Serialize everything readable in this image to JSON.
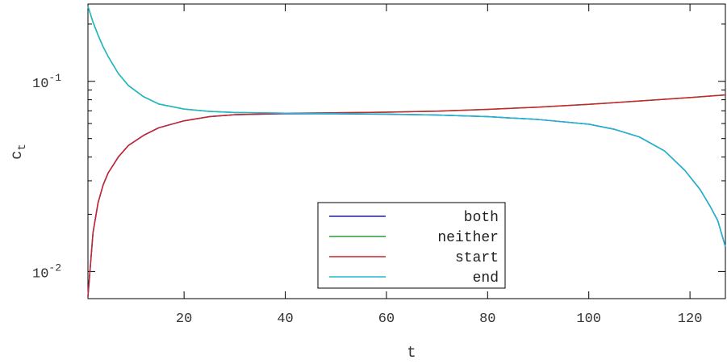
{
  "chart_data": {
    "type": "line",
    "xlabel": "t",
    "ylabel_base": "c",
    "ylabel_sub": "t",
    "xlim": [
      1,
      127
    ],
    "ylim": [
      0.0072,
      0.255
    ],
    "yscale": "log",
    "x_ticks": [
      20,
      40,
      60,
      80,
      100,
      120
    ],
    "x_tick_labels": [
      "20",
      "40",
      "60",
      "80",
      "100",
      "120"
    ],
    "y_major_ticks": [
      {
        "value": 0.1,
        "base": "10",
        "exp": "-1"
      },
      {
        "value": 0.01,
        "base": "10",
        "exp": "-2"
      }
    ],
    "y_minor_ticks": [
      0.02,
      0.03,
      0.04,
      0.05,
      0.06,
      0.07,
      0.08,
      0.09,
      0.2
    ],
    "grid": false,
    "legend_position": "bottom-center",
    "series": [
      {
        "name": "both",
        "color": "#1a1adc",
        "points": [
          [
            1,
            0.0074
          ],
          [
            2,
            0.016
          ],
          [
            3,
            0.023
          ],
          [
            4,
            0.0285
          ],
          [
            5,
            0.033
          ],
          [
            7,
            0.04
          ],
          [
            9,
            0.046
          ],
          [
            12,
            0.052
          ],
          [
            15,
            0.057
          ],
          [
            20,
            0.062
          ],
          [
            25,
            0.0652
          ],
          [
            30,
            0.0668
          ],
          [
            40,
            0.0676
          ],
          [
            50,
            0.0675
          ],
          [
            60,
            0.0672
          ],
          [
            70,
            0.0665
          ],
          [
            80,
            0.0652
          ],
          [
            90,
            0.063
          ],
          [
            100,
            0.0595
          ],
          [
            105,
            0.056
          ],
          [
            110,
            0.051
          ],
          [
            115,
            0.043
          ],
          [
            119,
            0.034
          ],
          [
            122,
            0.027
          ],
          [
            124,
            0.022
          ],
          [
            125.5,
            0.0185
          ],
          [
            127,
            0.0135
          ]
        ]
      },
      {
        "name": "neither",
        "color": "#2a9a3a",
        "points": [
          [
            1,
            0.248
          ],
          [
            2,
            0.205
          ],
          [
            3,
            0.175
          ],
          [
            4,
            0.152
          ],
          [
            5,
            0.135
          ],
          [
            7,
            0.11
          ],
          [
            9,
            0.095
          ],
          [
            12,
            0.083
          ],
          [
            15,
            0.076
          ],
          [
            20,
            0.0715
          ],
          [
            25,
            0.0695
          ],
          [
            30,
            0.0686
          ],
          [
            40,
            0.068
          ],
          [
            50,
            0.0683
          ],
          [
            60,
            0.0688
          ],
          [
            70,
            0.0697
          ],
          [
            80,
            0.0712
          ],
          [
            90,
            0.0732
          ],
          [
            100,
            0.0757
          ],
          [
            110,
            0.0788
          ],
          [
            120,
            0.0822
          ],
          [
            127,
            0.0848
          ]
        ]
      },
      {
        "name": "start",
        "color": "#c8262a",
        "points": [
          [
            1,
            0.0074
          ],
          [
            2,
            0.016
          ],
          [
            3,
            0.023
          ],
          [
            4,
            0.0285
          ],
          [
            5,
            0.033
          ],
          [
            7,
            0.04
          ],
          [
            9,
            0.046
          ],
          [
            12,
            0.052
          ],
          [
            15,
            0.057
          ],
          [
            20,
            0.062
          ],
          [
            25,
            0.0652
          ],
          [
            30,
            0.0668
          ],
          [
            40,
            0.0678
          ],
          [
            50,
            0.0683
          ],
          [
            60,
            0.0688
          ],
          [
            70,
            0.0697
          ],
          [
            80,
            0.0712
          ],
          [
            90,
            0.0732
          ],
          [
            100,
            0.0757
          ],
          [
            110,
            0.0788
          ],
          [
            120,
            0.0822
          ],
          [
            127,
            0.0848
          ]
        ]
      },
      {
        "name": "end",
        "color": "#1fb8c8",
        "points": [
          [
            1,
            0.248
          ],
          [
            2,
            0.205
          ],
          [
            3,
            0.175
          ],
          [
            4,
            0.152
          ],
          [
            5,
            0.135
          ],
          [
            7,
            0.11
          ],
          [
            9,
            0.095
          ],
          [
            12,
            0.083
          ],
          [
            15,
            0.076
          ],
          [
            20,
            0.0715
          ],
          [
            25,
            0.0695
          ],
          [
            30,
            0.0686
          ],
          [
            40,
            0.068
          ],
          [
            50,
            0.0677
          ],
          [
            60,
            0.0673
          ],
          [
            70,
            0.0665
          ],
          [
            80,
            0.0652
          ],
          [
            90,
            0.063
          ],
          [
            100,
            0.0595
          ],
          [
            105,
            0.056
          ],
          [
            110,
            0.051
          ],
          [
            115,
            0.043
          ],
          [
            119,
            0.034
          ],
          [
            122,
            0.027
          ],
          [
            124,
            0.022
          ],
          [
            125.5,
            0.0185
          ],
          [
            127,
            0.0135
          ]
        ]
      }
    ]
  }
}
